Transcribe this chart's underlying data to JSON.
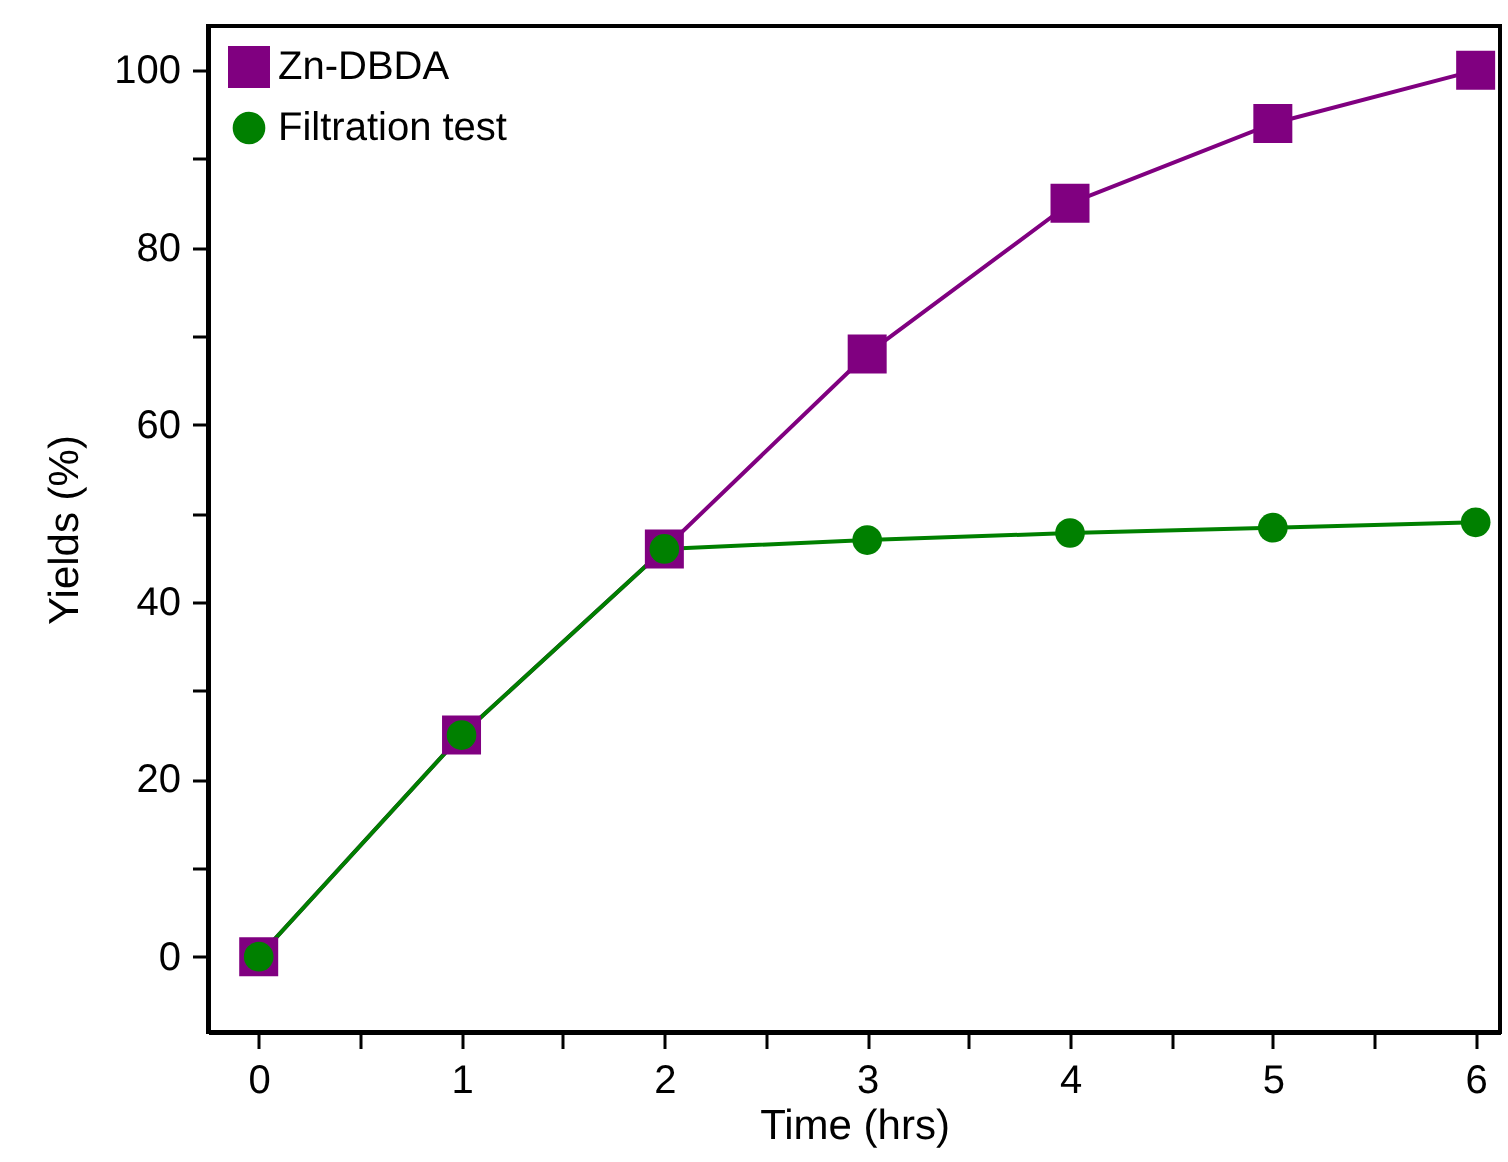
{
  "chart_data": {
    "type": "line",
    "xlabel": "Time (hrs)",
    "ylabel": "Yields (%)",
    "x": [
      0,
      1,
      2,
      3,
      4,
      5,
      6
    ],
    "series": [
      {
        "name": "Zn-DBDA",
        "color": "#800080",
        "marker": "square",
        "values": [
          0,
          25,
          46,
          68,
          85,
          94,
          100
        ]
      },
      {
        "name": "Filtration test",
        "color": "#008000",
        "marker": "circle",
        "values": [
          0,
          25,
          46,
          47,
          47.8,
          48.4,
          49
        ]
      }
    ],
    "xlim": [
      -0.25,
      6.12
    ],
    "ylim": [
      -8.5,
      105
    ],
    "xticks": [
      0,
      {
        "value": 0.5,
        "label": null
      },
      1,
      {
        "value": 1.5,
        "label": null
      },
      2,
      {
        "value": 2.5,
        "label": null
      },
      3,
      {
        "value": 3.5,
        "label": null
      },
      4,
      {
        "value": 4.5,
        "label": null
      },
      5,
      {
        "value": 5.5,
        "label": null
      },
      6
    ],
    "yticks": [
      0,
      {
        "value": 10,
        "label": null
      },
      20,
      {
        "value": 30,
        "label": null
      },
      40,
      {
        "value": 50,
        "label": null
      },
      60,
      {
        "value": 70,
        "label": null
      },
      80,
      {
        "value": 90,
        "label": null
      },
      100
    ],
    "grid": false,
    "legend": "top left"
  }
}
